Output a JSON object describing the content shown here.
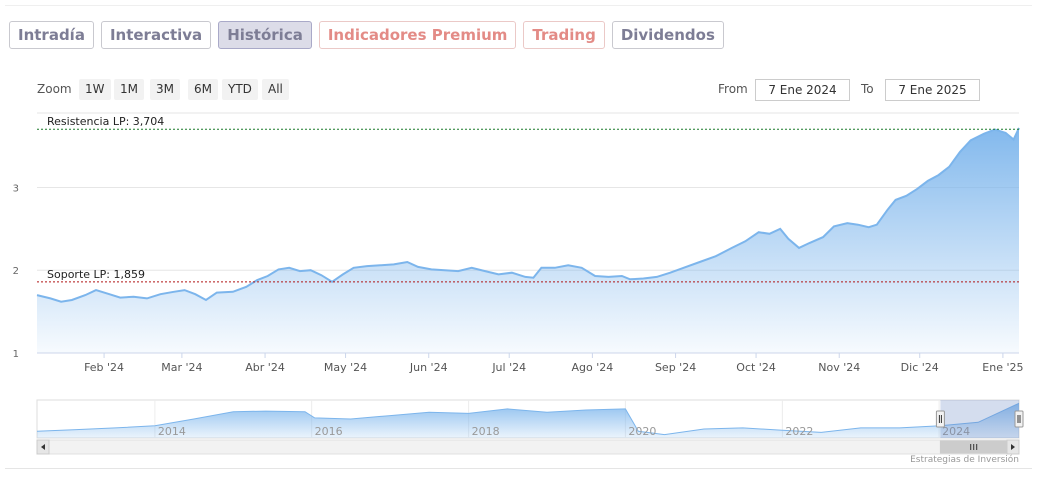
{
  "tabs": [
    {
      "label": "Intradía",
      "state": "normal"
    },
    {
      "label": "Interactiva",
      "state": "normal"
    },
    {
      "label": "Histórica",
      "state": "active"
    },
    {
      "label": "Indicadores Premium",
      "state": "premium"
    },
    {
      "label": "Trading",
      "state": "premium"
    },
    {
      "label": "Dividendos",
      "state": "normal"
    }
  ],
  "toolbar": {
    "zoom_label": "Zoom",
    "zoom_buttons": [
      "1W",
      "1M",
      "3M",
      "6M",
      "YTD",
      "All"
    ],
    "from_label": "From",
    "from_value": "7 Ene 2024",
    "to_label": "To",
    "to_value": "7 Ene 2025"
  },
  "colors": {
    "series": "#7cb5ec",
    "resistance": "#1a7a2a",
    "support": "#b01515",
    "tab_text": "#7d7d95",
    "tab_premium": "#e38b86"
  },
  "credit": "Estrategias de Inversión",
  "chart_data": {
    "type": "area",
    "x_start": "2024-01-07",
    "x_end": "2025-01-07",
    "ylim": [
      1,
      3.9
    ],
    "y_ticks": [
      "1",
      "2",
      "3"
    ],
    "x_ticks": [
      {
        "label": "Feb '24",
        "date": "2024-02-01"
      },
      {
        "label": "Mar '24",
        "date": "2024-03-01"
      },
      {
        "label": "Abr '24",
        "date": "2024-04-01"
      },
      {
        "label": "May '24",
        "date": "2024-05-01"
      },
      {
        "label": "Jun '24",
        "date": "2024-06-01"
      },
      {
        "label": "Jul '24",
        "date": "2024-07-01"
      },
      {
        "label": "Ago '24",
        "date": "2024-08-01"
      },
      {
        "label": "Sep '24",
        "date": "2024-09-01"
      },
      {
        "label": "Oct '24",
        "date": "2024-10-01"
      },
      {
        "label": "Nov '24",
        "date": "2024-11-01"
      },
      {
        "label": "Dic '24",
        "date": "2024-12-01"
      },
      {
        "label": "Ene '25",
        "date": "2025-01-01"
      }
    ],
    "resistance": {
      "label": "Resistencia LP: 3,704",
      "value": 3.704
    },
    "support": {
      "label": "Soporte LP: 1,859",
      "value": 1.859
    },
    "grid": true,
    "series": [
      {
        "points": [
          [
            "2024-01-07",
            1.7
          ],
          [
            "2024-01-12",
            1.66
          ],
          [
            "2024-01-16",
            1.62
          ],
          [
            "2024-01-20",
            1.64
          ],
          [
            "2024-01-25",
            1.7
          ],
          [
            "2024-01-29",
            1.76
          ],
          [
            "2024-02-03",
            1.71
          ],
          [
            "2024-02-07",
            1.67
          ],
          [
            "2024-02-12",
            1.68
          ],
          [
            "2024-02-17",
            1.66
          ],
          [
            "2024-02-22",
            1.71
          ],
          [
            "2024-02-27",
            1.74
          ],
          [
            "2024-03-02",
            1.76
          ],
          [
            "2024-03-06",
            1.71
          ],
          [
            "2024-03-10",
            1.64
          ],
          [
            "2024-03-14",
            1.73
          ],
          [
            "2024-03-20",
            1.74
          ],
          [
            "2024-03-25",
            1.8
          ],
          [
            "2024-03-29",
            1.88
          ],
          [
            "2024-04-02",
            1.93
          ],
          [
            "2024-04-06",
            2.01
          ],
          [
            "2024-04-10",
            2.03
          ],
          [
            "2024-04-14",
            1.99
          ],
          [
            "2024-04-18",
            2.0
          ],
          [
            "2024-04-22",
            1.94
          ],
          [
            "2024-04-26",
            1.86
          ],
          [
            "2024-04-30",
            1.95
          ],
          [
            "2024-05-04",
            2.03
          ],
          [
            "2024-05-09",
            2.05
          ],
          [
            "2024-05-14",
            2.06
          ],
          [
            "2024-05-19",
            2.07
          ],
          [
            "2024-05-24",
            2.1
          ],
          [
            "2024-05-28",
            2.04
          ],
          [
            "2024-06-02",
            2.01
          ],
          [
            "2024-06-07",
            2.0
          ],
          [
            "2024-06-12",
            1.99
          ],
          [
            "2024-06-17",
            2.03
          ],
          [
            "2024-06-22",
            1.99
          ],
          [
            "2024-06-27",
            1.95
          ],
          [
            "2024-07-02",
            1.97
          ],
          [
            "2024-07-07",
            1.92
          ],
          [
            "2024-07-10",
            1.91
          ],
          [
            "2024-07-13",
            2.03
          ],
          [
            "2024-07-18",
            2.03
          ],
          [
            "2024-07-23",
            2.06
          ],
          [
            "2024-07-28",
            2.03
          ],
          [
            "2024-08-02",
            1.93
          ],
          [
            "2024-08-07",
            1.92
          ],
          [
            "2024-08-12",
            1.93
          ],
          [
            "2024-08-15",
            1.89
          ],
          [
            "2024-08-20",
            1.9
          ],
          [
            "2024-08-25",
            1.92
          ],
          [
            "2024-08-30",
            1.97
          ],
          [
            "2024-09-04",
            2.03
          ],
          [
            "2024-09-10",
            2.1
          ],
          [
            "2024-09-16",
            2.17
          ],
          [
            "2024-09-22",
            2.27
          ],
          [
            "2024-09-27",
            2.35
          ],
          [
            "2024-10-02",
            2.46
          ],
          [
            "2024-10-06",
            2.44
          ],
          [
            "2024-10-10",
            2.5
          ],
          [
            "2024-10-13",
            2.38
          ],
          [
            "2024-10-17",
            2.27
          ],
          [
            "2024-10-21",
            2.33
          ],
          [
            "2024-10-26",
            2.4
          ],
          [
            "2024-10-30",
            2.53
          ],
          [
            "2024-11-04",
            2.57
          ],
          [
            "2024-11-08",
            2.55
          ],
          [
            "2024-11-12",
            2.52
          ],
          [
            "2024-11-15",
            2.55
          ],
          [
            "2024-11-19",
            2.73
          ],
          [
            "2024-11-22",
            2.85
          ],
          [
            "2024-11-26",
            2.9
          ],
          [
            "2024-11-30",
            2.98
          ],
          [
            "2024-12-04",
            3.08
          ],
          [
            "2024-12-08",
            3.15
          ],
          [
            "2024-12-12",
            3.25
          ],
          [
            "2024-12-16",
            3.43
          ],
          [
            "2024-12-20",
            3.57
          ],
          [
            "2024-12-25",
            3.65
          ],
          [
            "2024-12-29",
            3.7
          ],
          [
            "2025-01-02",
            3.66
          ],
          [
            "2025-01-05",
            3.58
          ],
          [
            "2025-01-07",
            3.72
          ]
        ]
      }
    ],
    "navigator": {
      "x_ticks": [
        "2014",
        "2016",
        "2018",
        "2020",
        "2022",
        "2024"
      ],
      "series": [
        {
          "points": [
            [
              "2012-07-01",
              1.2
            ],
            [
              "2013-01-01",
              1.35
            ],
            [
              "2013-07-01",
              1.5
            ],
            [
              "2014-01-01",
              1.7
            ],
            [
              "2014-07-01",
              2.3
            ],
            [
              "2015-01-01",
              2.95
            ],
            [
              "2015-06-01",
              3.0
            ],
            [
              "2015-12-01",
              2.95
            ],
            [
              "2016-01-15",
              2.4
            ],
            [
              "2016-07-01",
              2.3
            ],
            [
              "2017-01-01",
              2.6
            ],
            [
              "2017-07-01",
              2.9
            ],
            [
              "2018-01-01",
              2.8
            ],
            [
              "2018-07-01",
              3.2
            ],
            [
              "2019-01-01",
              2.9
            ],
            [
              "2019-07-01",
              3.1
            ],
            [
              "2020-01-01",
              3.2
            ],
            [
              "2020-03-01",
              1.2
            ],
            [
              "2020-07-01",
              0.9
            ],
            [
              "2021-01-01",
              1.4
            ],
            [
              "2021-07-01",
              1.5
            ],
            [
              "2022-01-01",
              1.3
            ],
            [
              "2022-07-01",
              1.1
            ],
            [
              "2023-01-01",
              1.5
            ],
            [
              "2023-07-01",
              1.5
            ],
            [
              "2024-01-07",
              1.7
            ],
            [
              "2024-07-01",
              2.0
            ],
            [
              "2025-01-07",
              3.7
            ]
          ]
        }
      ]
    }
  }
}
